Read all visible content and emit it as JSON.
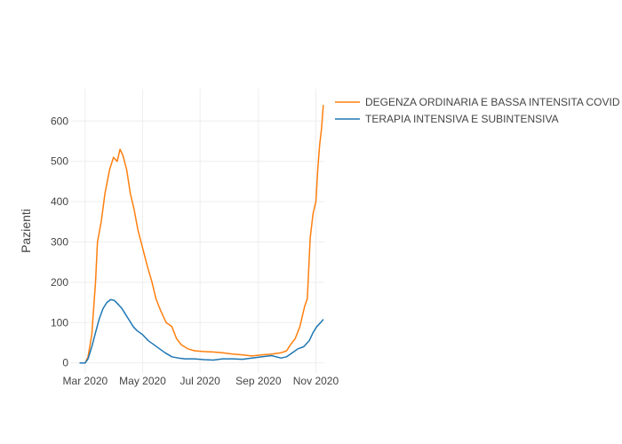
{
  "chart_data": {
    "type": "line",
    "title": "",
    "xlabel": "",
    "ylabel": "Pazienti",
    "xlim": [
      "2020-02-15",
      "2020-11-10"
    ],
    "ylim": [
      -25,
      680
    ],
    "grid": true,
    "legend_position": "top-right",
    "x_ticks": [
      {
        "date": "2020-03-01",
        "label": "Mar 2020"
      },
      {
        "date": "2020-05-01",
        "label": "May 2020"
      },
      {
        "date": "2020-07-01",
        "label": "Jul 2020"
      },
      {
        "date": "2020-09-01",
        "label": "Sep 2020"
      },
      {
        "date": "2020-11-01",
        "label": "Nov 2020"
      }
    ],
    "y_ticks": [
      0,
      100,
      200,
      300,
      400,
      500,
      600
    ],
    "series": [
      {
        "name": "DEGENZA ORDINARIA E BASSA INTENSITA COVID",
        "color": "#ff7f0e",
        "points": [
          [
            "2020-02-24",
            0
          ],
          [
            "2020-03-01",
            0
          ],
          [
            "2020-03-04",
            15
          ],
          [
            "2020-03-08",
            70
          ],
          [
            "2020-03-12",
            200
          ],
          [
            "2020-03-14",
            300
          ],
          [
            "2020-03-18",
            350
          ],
          [
            "2020-03-22",
            420
          ],
          [
            "2020-03-27",
            480
          ],
          [
            "2020-03-31",
            510
          ],
          [
            "2020-04-04",
            500
          ],
          [
            "2020-04-07",
            530
          ],
          [
            "2020-04-10",
            515
          ],
          [
            "2020-04-14",
            480
          ],
          [
            "2020-04-18",
            420
          ],
          [
            "2020-04-22",
            380
          ],
          [
            "2020-04-26",
            330
          ],
          [
            "2020-05-01",
            285
          ],
          [
            "2020-05-06",
            240
          ],
          [
            "2020-05-11",
            200
          ],
          [
            "2020-05-15",
            160
          ],
          [
            "2020-05-20",
            130
          ],
          [
            "2020-05-26",
            100
          ],
          [
            "2020-06-01",
            90
          ],
          [
            "2020-06-06",
            60
          ],
          [
            "2020-06-11",
            45
          ],
          [
            "2020-06-18",
            35
          ],
          [
            "2020-06-25",
            30
          ],
          [
            "2020-07-05",
            28
          ],
          [
            "2020-07-15",
            27
          ],
          [
            "2020-07-25",
            25
          ],
          [
            "2020-08-05",
            22
          ],
          [
            "2020-08-15",
            20
          ],
          [
            "2020-08-25",
            17
          ],
          [
            "2020-09-05",
            20
          ],
          [
            "2020-09-15",
            22
          ],
          [
            "2020-09-25",
            25
          ],
          [
            "2020-10-01",
            30
          ],
          [
            "2020-10-05",
            45
          ],
          [
            "2020-10-10",
            60
          ],
          [
            "2020-10-15",
            90
          ],
          [
            "2020-10-20",
            140
          ],
          [
            "2020-10-23",
            160
          ],
          [
            "2020-10-26",
            310
          ],
          [
            "2020-10-29",
            370
          ],
          [
            "2020-11-01",
            400
          ],
          [
            "2020-11-03",
            480
          ],
          [
            "2020-11-05",
            540
          ],
          [
            "2020-11-07",
            580
          ],
          [
            "2020-11-09",
            640
          ]
        ]
      },
      {
        "name": "TERAPIA INTENSIVA E SUBINTENSIVA",
        "color": "#1f77b4",
        "points": [
          [
            "2020-02-24",
            0
          ],
          [
            "2020-03-01",
            0
          ],
          [
            "2020-03-04",
            10
          ],
          [
            "2020-03-08",
            40
          ],
          [
            "2020-03-12",
            75
          ],
          [
            "2020-03-16",
            110
          ],
          [
            "2020-03-20",
            135
          ],
          [
            "2020-03-24",
            150
          ],
          [
            "2020-03-28",
            157
          ],
          [
            "2020-04-01",
            155
          ],
          [
            "2020-04-05",
            145
          ],
          [
            "2020-04-09",
            135
          ],
          [
            "2020-04-13",
            120
          ],
          [
            "2020-04-17",
            105
          ],
          [
            "2020-04-21",
            90
          ],
          [
            "2020-04-25",
            80
          ],
          [
            "2020-05-01",
            70
          ],
          [
            "2020-05-07",
            55
          ],
          [
            "2020-05-13",
            45
          ],
          [
            "2020-05-19",
            35
          ],
          [
            "2020-05-25",
            25
          ],
          [
            "2020-06-01",
            15
          ],
          [
            "2020-06-08",
            12
          ],
          [
            "2020-06-15",
            10
          ],
          [
            "2020-06-25",
            10
          ],
          [
            "2020-07-05",
            8
          ],
          [
            "2020-07-15",
            7
          ],
          [
            "2020-07-25",
            10
          ],
          [
            "2020-08-05",
            10
          ],
          [
            "2020-08-15",
            9
          ],
          [
            "2020-08-25",
            12
          ],
          [
            "2020-09-05",
            15
          ],
          [
            "2020-09-15",
            18
          ],
          [
            "2020-09-25",
            12
          ],
          [
            "2020-10-01",
            15
          ],
          [
            "2020-10-07",
            25
          ],
          [
            "2020-10-13",
            35
          ],
          [
            "2020-10-19",
            40
          ],
          [
            "2020-10-25",
            55
          ],
          [
            "2020-10-29",
            75
          ],
          [
            "2020-11-02",
            90
          ],
          [
            "2020-11-06",
            100
          ],
          [
            "2020-11-09",
            108
          ]
        ]
      }
    ]
  }
}
